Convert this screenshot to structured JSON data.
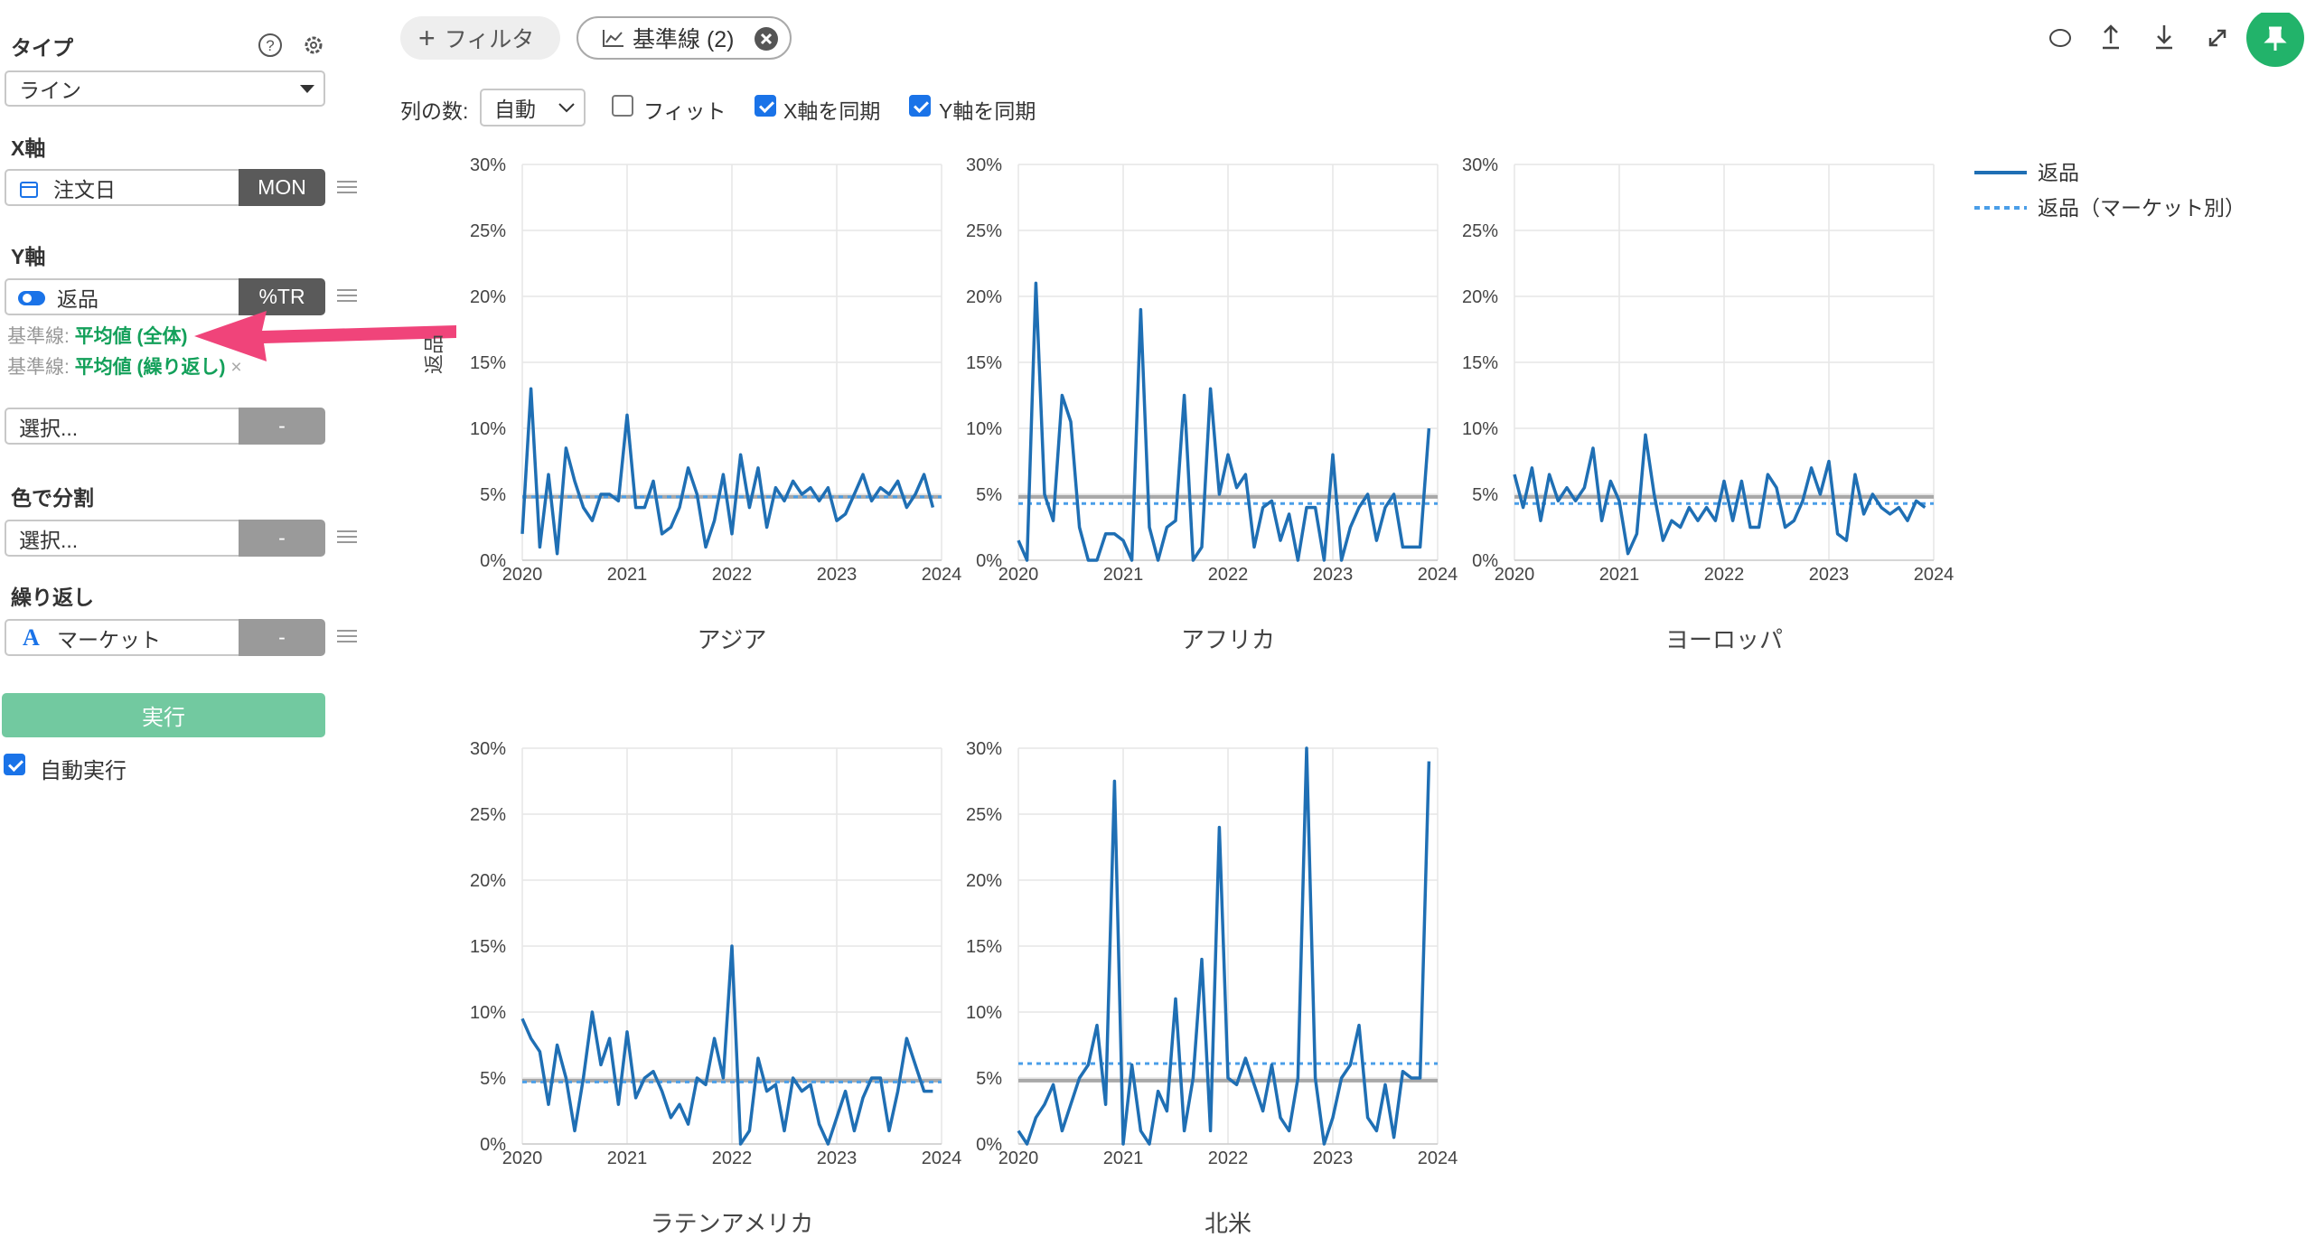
{
  "sidebar": {
    "type_label": "タイプ",
    "type_value": "ライン",
    "x_axis_label": "X軸",
    "x_field": "注文日",
    "x_agg": "MON",
    "y_axis_label": "Y軸",
    "y_field": "返品",
    "y_agg": "%TR",
    "baselines": [
      {
        "prefix": "基準線:",
        "value": "平均値 (全体)"
      },
      {
        "prefix": "基準線:",
        "value": "平均値 (繰り返し)"
      }
    ],
    "extra_select": "選択...",
    "extra_button": "-",
    "color_label": "色で分割",
    "color_select": "選択...",
    "color_button": "-",
    "repeat_label": "繰り返し",
    "repeat_field": "マーケット",
    "repeat_button": "-",
    "run_button": "実行",
    "auto_run": "自動実行",
    "auto_run_checked": true
  },
  "toolbar": {
    "filter": "フィルタ",
    "baseline_chip": "基準線 (2)",
    "columns_label": "列の数:",
    "columns_value": "自動",
    "fit": "フィット",
    "fit_checked": false,
    "sync_x": "X軸を同期",
    "sync_x_checked": true,
    "sync_y": "Y軸を同期",
    "sync_y_checked": true
  },
  "y_axis_title": "返品",
  "legend": [
    {
      "name": "返品",
      "color": "#1f6fb4",
      "style": "solid"
    },
    {
      "name": "返品（マーケット別）",
      "color": "#4a9ee8",
      "style": "dotted"
    }
  ],
  "overall_average_color": "#a8a8a8",
  "chart_data": [
    {
      "type": "line",
      "title": "アジア",
      "xlim": [
        2020,
        2024
      ],
      "xticks": [
        2020,
        2021,
        2022,
        2023,
        2024
      ],
      "ylim": [
        0,
        30
      ],
      "yticks": [
        {
          "value": 0,
          "label": "0%"
        },
        {
          "value": 5,
          "label": "5%"
        },
        {
          "value": 10,
          "label": "10%"
        },
        {
          "value": 15,
          "label": "15%"
        },
        {
          "value": 20,
          "label": "20%"
        },
        {
          "value": 25,
          "label": "25%"
        },
        {
          "value": 30,
          "label": "30%"
        }
      ],
      "grid": true,
      "x": [
        2020,
        2020.083,
        2020.167,
        2020.25,
        2020.333,
        2020.417,
        2020.5,
        2020.583,
        2020.667,
        2020.75,
        2020.833,
        2020.917,
        2021,
        2021.083,
        2021.167,
        2021.25,
        2021.333,
        2021.417,
        2021.5,
        2021.583,
        2021.667,
        2021.75,
        2021.833,
        2021.917,
        2022,
        2022.083,
        2022.167,
        2022.25,
        2022.333,
        2022.417,
        2022.5,
        2022.583,
        2022.667,
        2022.75,
        2022.833,
        2022.917,
        2023,
        2023.083,
        2023.167,
        2023.25,
        2023.333,
        2023.417,
        2023.5,
        2023.583,
        2023.667,
        2023.75,
        2023.833,
        2023.917
      ],
      "values": [
        2,
        13,
        1,
        6.5,
        0.5,
        8.5,
        6,
        4,
        3,
        5,
        5,
        4.5,
        11,
        4,
        4,
        6,
        2,
        2.5,
        4,
        7,
        5,
        1,
        3,
        6.5,
        2,
        8,
        4,
        7,
        2.5,
        5.5,
        4.5,
        6,
        5,
        5.5,
        4.5,
        5.5,
        3,
        3.5,
        5,
        6.5,
        4.5,
        5.5,
        5,
        6,
        4,
        5,
        6.5,
        4
      ],
      "market_average": 4.8,
      "overall_average": 4.8
    },
    {
      "type": "line",
      "title": "アフリカ",
      "xlim": [
        2020,
        2024
      ],
      "xticks": [
        2020,
        2021,
        2022,
        2023,
        2024
      ],
      "ylim": [
        0,
        30
      ],
      "yticks": [
        {
          "value": 0,
          "label": "0%"
        },
        {
          "value": 5,
          "label": "5%"
        },
        {
          "value": 10,
          "label": "10%"
        },
        {
          "value": 15,
          "label": "15%"
        },
        {
          "value": 20,
          "label": "20%"
        },
        {
          "value": 25,
          "label": "25%"
        },
        {
          "value": 30,
          "label": "30%"
        }
      ],
      "grid": true,
      "x": [
        2020,
        2020.083,
        2020.167,
        2020.25,
        2020.333,
        2020.417,
        2020.5,
        2020.583,
        2020.667,
        2020.75,
        2020.833,
        2020.917,
        2021,
        2021.083,
        2021.167,
        2021.25,
        2021.333,
        2021.417,
        2021.5,
        2021.583,
        2021.667,
        2021.75,
        2021.833,
        2021.917,
        2022,
        2022.083,
        2022.167,
        2022.25,
        2022.333,
        2022.417,
        2022.5,
        2022.583,
        2022.667,
        2022.75,
        2022.833,
        2022.917,
        2023,
        2023.083,
        2023.167,
        2023.25,
        2023.333,
        2023.417,
        2023.5,
        2023.583,
        2023.667,
        2023.75,
        2023.833,
        2023.917
      ],
      "values": [
        1.5,
        0,
        21,
        5,
        3,
        12.5,
        10.5,
        2.5,
        0,
        0,
        2,
        2,
        1.5,
        0,
        19,
        2.5,
        0,
        2.5,
        3,
        12.5,
        0,
        1,
        13,
        5,
        8,
        5.5,
        6.5,
        1,
        4,
        4.5,
        1.5,
        3.5,
        0,
        4,
        4,
        0,
        8,
        0,
        2.5,
        4,
        5,
        1.5,
        4,
        5,
        1,
        1,
        1,
        10
      ],
      "market_average": 4.3,
      "overall_average": 4.8
    },
    {
      "type": "line",
      "title": "ヨーロッパ",
      "xlim": [
        2020,
        2024
      ],
      "xticks": [
        2020,
        2021,
        2022,
        2023,
        2024
      ],
      "ylim": [
        0,
        30
      ],
      "yticks": [
        {
          "value": 0,
          "label": "0%"
        },
        {
          "value": 5,
          "label": "5%"
        },
        {
          "value": 10,
          "label": "10%"
        },
        {
          "value": 15,
          "label": "15%"
        },
        {
          "value": 20,
          "label": "20%"
        },
        {
          "value": 25,
          "label": "25%"
        },
        {
          "value": 30,
          "label": "30%"
        }
      ],
      "grid": true,
      "x": [
        2020,
        2020.083,
        2020.167,
        2020.25,
        2020.333,
        2020.417,
        2020.5,
        2020.583,
        2020.667,
        2020.75,
        2020.833,
        2020.917,
        2021,
        2021.083,
        2021.167,
        2021.25,
        2021.333,
        2021.417,
        2021.5,
        2021.583,
        2021.667,
        2021.75,
        2021.833,
        2021.917,
        2022,
        2022.083,
        2022.167,
        2022.25,
        2022.333,
        2022.417,
        2022.5,
        2022.583,
        2022.667,
        2022.75,
        2022.833,
        2022.917,
        2023,
        2023.083,
        2023.167,
        2023.25,
        2023.333,
        2023.417,
        2023.5,
        2023.583,
        2023.667,
        2023.75,
        2023.833,
        2023.917
      ],
      "values": [
        6.5,
        4,
        7,
        3,
        6.5,
        4.5,
        5.5,
        4.5,
        5.5,
        8.5,
        3,
        6,
        4.5,
        0.5,
        2,
        9.5,
        5,
        1.5,
        3,
        2.5,
        4,
        3,
        4,
        3,
        6,
        3,
        6,
        2.5,
        2.5,
        6.5,
        5.5,
        2.5,
        3,
        4.5,
        7,
        5,
        7.5,
        2,
        1.5,
        6.5,
        3.5,
        5,
        4,
        3.5,
        4,
        3,
        4.5,
        4
      ],
      "market_average": 4.3,
      "overall_average": 4.8
    },
    {
      "type": "line",
      "title": "ラテンアメリカ",
      "xlim": [
        2020,
        2024
      ],
      "xticks": [
        2020,
        2021,
        2022,
        2023,
        2024
      ],
      "ylim": [
        0,
        30
      ],
      "yticks": [
        {
          "value": 0,
          "label": "0%"
        },
        {
          "value": 5,
          "label": "5%"
        },
        {
          "value": 10,
          "label": "10%"
        },
        {
          "value": 15,
          "label": "15%"
        },
        {
          "value": 20,
          "label": "20%"
        },
        {
          "value": 25,
          "label": "25%"
        },
        {
          "value": 30,
          "label": "30%"
        }
      ],
      "grid": true,
      "x": [
        2020,
        2020.083,
        2020.167,
        2020.25,
        2020.333,
        2020.417,
        2020.5,
        2020.583,
        2020.667,
        2020.75,
        2020.833,
        2020.917,
        2021,
        2021.083,
        2021.167,
        2021.25,
        2021.333,
        2021.417,
        2021.5,
        2021.583,
        2021.667,
        2021.75,
        2021.833,
        2021.917,
        2022,
        2022.083,
        2022.167,
        2022.25,
        2022.333,
        2022.417,
        2022.5,
        2022.583,
        2022.667,
        2022.75,
        2022.833,
        2022.917,
        2023,
        2023.083,
        2023.167,
        2023.25,
        2023.333,
        2023.417,
        2023.5,
        2023.583,
        2023.667,
        2023.75,
        2023.833,
        2023.917
      ],
      "values": [
        9.5,
        8,
        7,
        3,
        7.5,
        5,
        1,
        5,
        10,
        6,
        8,
        3,
        8.5,
        3.5,
        5,
        5.5,
        4,
        2,
        3,
        1.5,
        5,
        4.5,
        8,
        5,
        15,
        0,
        1,
        6.5,
        4,
        4.5,
        1,
        5,
        4,
        4.5,
        1.5,
        0,
        2,
        4,
        1,
        3.5,
        5,
        5,
        1,
        4,
        8,
        6,
        4,
        4
      ],
      "market_average": 4.7,
      "overall_average": 4.8
    },
    {
      "type": "line",
      "title": "北米",
      "xlim": [
        2020,
        2024
      ],
      "xticks": [
        2020,
        2021,
        2022,
        2023,
        2024
      ],
      "ylim": [
        0,
        30
      ],
      "yticks": [
        {
          "value": 0,
          "label": "0%"
        },
        {
          "value": 5,
          "label": "5%"
        },
        {
          "value": 10,
          "label": "10%"
        },
        {
          "value": 15,
          "label": "15%"
        },
        {
          "value": 20,
          "label": "20%"
        },
        {
          "value": 25,
          "label": "25%"
        },
        {
          "value": 30,
          "label": "30%"
        }
      ],
      "grid": true,
      "x": [
        2020,
        2020.083,
        2020.167,
        2020.25,
        2020.333,
        2020.417,
        2020.5,
        2020.583,
        2020.667,
        2020.75,
        2020.833,
        2020.917,
        2021,
        2021.083,
        2021.167,
        2021.25,
        2021.333,
        2021.417,
        2021.5,
        2021.583,
        2021.667,
        2021.75,
        2021.833,
        2021.917,
        2022,
        2022.083,
        2022.167,
        2022.25,
        2022.333,
        2022.417,
        2022.5,
        2022.583,
        2022.667,
        2022.75,
        2022.833,
        2022.917,
        2023,
        2023.083,
        2023.167,
        2023.25,
        2023.333,
        2023.417,
        2023.5,
        2023.583,
        2023.667,
        2023.75,
        2023.833,
        2023.917
      ],
      "values": [
        1,
        0,
        2,
        3,
        4.5,
        1,
        3,
        5,
        6,
        9,
        3,
        27.5,
        0,
        6,
        1,
        0,
        4,
        2.5,
        11,
        1,
        5,
        14,
        1,
        24,
        5,
        4.5,
        6.5,
        4.5,
        2.5,
        6,
        2,
        1,
        5,
        30,
        5,
        0,
        2,
        5,
        6,
        9,
        2,
        1,
        4.5,
        0.5,
        5.5,
        5,
        5,
        29
      ],
      "market_average": 6.1,
      "overall_average": 4.8
    }
  ]
}
